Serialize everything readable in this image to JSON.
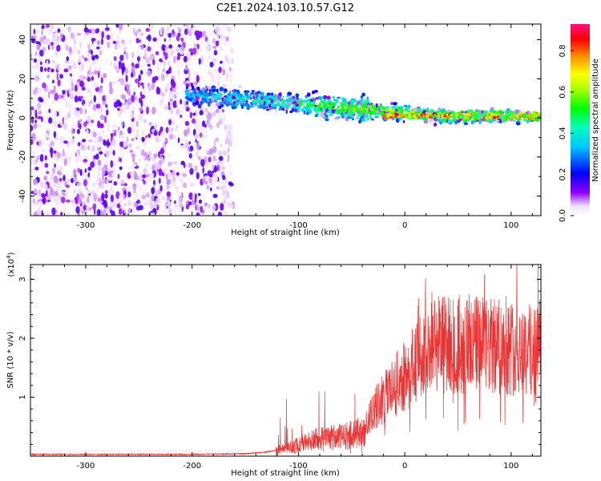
{
  "title": "C2E1.2024.103.10.57.G12",
  "chart_data": [
    {
      "type": "heatmap",
      "xlabel": "Height of straight line (km)",
      "ylabel": "Frequency (Hz)",
      "xlim": [
        -352,
        128
      ],
      "ylim": [
        -50,
        48
      ],
      "xticks": [
        -300,
        -200,
        -100,
        0,
        100
      ],
      "yticks": [
        -40,
        -20,
        0,
        20,
        40
      ],
      "colorbar": {
        "label": "Normalized spectral amplitude",
        "range": [
          0,
          0.93
        ],
        "ticks": [
          0.0,
          0.2,
          0.4,
          0.6,
          0.8
        ]
      },
      "grid": false,
      "features": [
        {
          "name": "noise-region",
          "x_range": [
            -352,
            -162
          ],
          "freq_range": [
            -50,
            48
          ],
          "amplitude": 0.05
        },
        {
          "name": "signal-band",
          "x_range": [
            -205,
            128
          ],
          "center_freq_start": 12,
          "center_freq_end": 1,
          "amplitude_peak": 0.9
        }
      ]
    },
    {
      "type": "line",
      "xlabel": "Height of straight line (km)",
      "ylabel": "SNR (10 * v/v)",
      "y_scale_label": "(x10",
      "y_scale_exp": "4",
      "y_scale_close": ")",
      "xlim": [
        -352,
        128
      ],
      "ylim": [
        0,
        3.25
      ],
      "xticks": [
        -300,
        -200,
        -100,
        0,
        100
      ],
      "yticks": [
        1,
        2,
        3
      ],
      "grid": false,
      "series": [
        {
          "color": "#ee3333",
          "x": [
            -350,
            -300,
            -250,
            -200,
            -150,
            -130,
            -110,
            -100,
            -80,
            -60,
            -40,
            -30,
            -20,
            -10,
            0,
            10,
            20,
            30,
            40,
            60,
            80,
            100,
            120,
            128
          ],
          "values": [
            0.03,
            0.03,
            0.03,
            0.03,
            0.04,
            0.07,
            0.14,
            0.2,
            0.3,
            0.32,
            0.4,
            0.75,
            1.0,
            1.2,
            1.35,
            1.55,
            1.8,
            1.95,
            1.9,
            1.9,
            1.85,
            1.85,
            1.8,
            1.85
          ]
        }
      ]
    }
  ]
}
